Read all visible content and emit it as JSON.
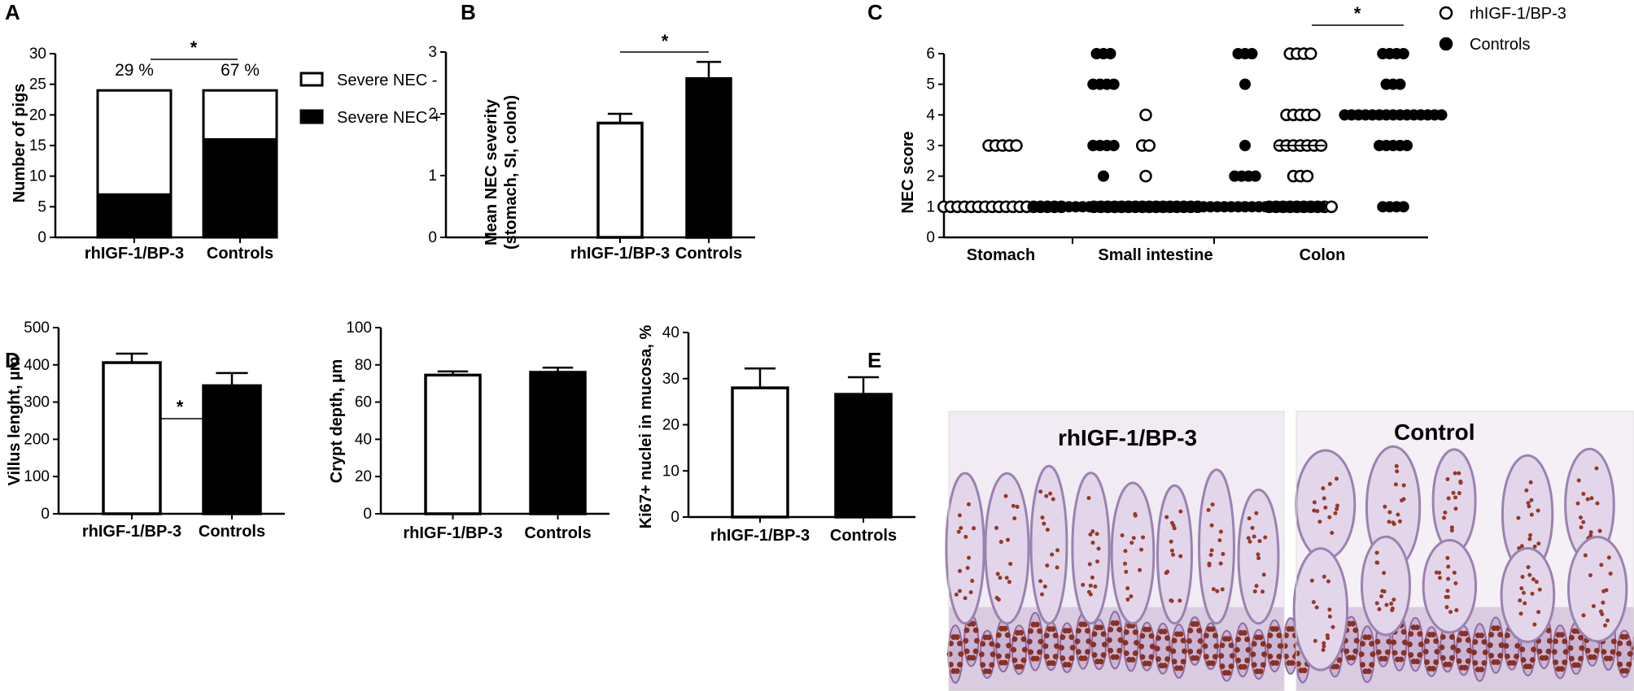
{
  "panels": {
    "A": "A",
    "B": "B",
    "C": "C",
    "D": "D",
    "E": "E"
  },
  "legend_AC": {
    "severe_neg": "Severe NEC -",
    "severe_pos": "Severe NEC +",
    "rhigf": "rhIGF-1/BP-3",
    "controls": "Controls"
  },
  "colors": {
    "black": "#000000",
    "white": "#ffffff"
  },
  "micrograph": {
    "left_label": "rhIGF-1/BP-3",
    "right_label": "Control",
    "left_icon": "micrograph-rhigf-tissue",
    "right_icon": "micrograph-control-tissue"
  },
  "chart_data": [
    {
      "id": "A",
      "type": "bar",
      "stacked": true,
      "categories": [
        "rhIGF-1/BP-3",
        "Controls"
      ],
      "series": [
        {
          "name": "Severe NEC +",
          "values": [
            7,
            16
          ],
          "color": "#000000"
        },
        {
          "name": "Severe NEC -",
          "values": [
            17,
            8
          ],
          "color": "#ffffff"
        }
      ],
      "totals": [
        24,
        24
      ],
      "percent_labels": [
        "29 %",
        "67 %"
      ],
      "ylabel": "Number of pigs",
      "ylim": [
        0,
        30
      ],
      "yticks": [
        0,
        5,
        10,
        15,
        20,
        25,
        30
      ],
      "significance": "*",
      "legend_position": "right"
    },
    {
      "id": "B",
      "type": "bar",
      "categories": [
        "rhIGF-1/BP-3",
        "Controls"
      ],
      "values": [
        1.85,
        2.57
      ],
      "errors": [
        0.15,
        0.27
      ],
      "fills": [
        "#ffffff",
        "#000000"
      ],
      "ylabel": "Mean NEC severity",
      "ylabel2": "(stomach, SI, colon)",
      "ylim": [
        0,
        3
      ],
      "yticks": [
        0,
        1,
        2,
        3
      ],
      "significance": "*"
    },
    {
      "id": "C",
      "type": "scatter",
      "categories": [
        "Stomach",
        "Small intestine",
        "Colon"
      ],
      "ylabel": "NEC score",
      "ylim": [
        0,
        6
      ],
      "yticks": [
        0,
        1,
        2,
        3,
        4,
        5,
        6
      ],
      "series": [
        {
          "name": "rhIGF-1/BP-3",
          "marker": "open-circle",
          "groups": [
            {
              "category": "Stomach",
              "values": [
                1,
                1,
                1,
                1,
                1,
                1,
                1,
                1,
                1,
                1,
                1,
                1,
                1,
                1,
                1,
                1,
                1,
                1,
                3,
                3,
                3,
                3,
                3
              ]
            },
            {
              "category": "Small intestine",
              "values": [
                1,
                1,
                1,
                1,
                1,
                1,
                1,
                1,
                1,
                1,
                1,
                1,
                1,
                1,
                1,
                1,
                2,
                3,
                3,
                4
              ]
            },
            {
              "category": "Colon",
              "values": [
                1,
                1,
                1,
                1,
                1,
                1,
                1,
                1,
                1,
                1,
                2,
                2,
                2,
                3,
                3,
                3,
                3,
                3,
                3,
                3,
                4,
                4,
                4,
                4,
                4,
                6,
                6,
                6,
                6
              ]
            }
          ],
          "medians": [
            null,
            null,
            3
          ]
        },
        {
          "name": "Controls",
          "marker": "filled-circle",
          "groups": [
            {
              "category": "Stomach",
              "values": [
                1,
                1,
                1,
                1,
                1,
                1,
                1,
                1,
                1,
                1,
                1,
                1,
                1,
                1,
                1,
                1,
                1,
                1,
                1,
                1,
                1,
                2,
                3,
                3,
                3,
                3,
                5,
                5,
                5,
                5,
                6,
                6,
                6
              ]
            },
            {
              "category": "Small intestine",
              "values": [
                1,
                1,
                1,
                1,
                1,
                1,
                1,
                1,
                1,
                1,
                1,
                1,
                1,
                1,
                1,
                1,
                1,
                1,
                1,
                1,
                1,
                1,
                1,
                2,
                2,
                2,
                2,
                3,
                5,
                6,
                6,
                6
              ]
            },
            {
              "category": "Colon",
              "values": [
                1,
                1,
                1,
                1,
                3,
                3,
                3,
                3,
                3,
                4,
                4,
                4,
                4,
                4,
                4,
                4,
                4,
                4,
                4,
                4,
                4,
                4,
                4,
                4,
                5,
                5,
                5,
                6,
                6,
                6,
                6
              ]
            }
          ]
        }
      ],
      "significance": "*",
      "legend_position": "top-right"
    },
    {
      "id": "D1",
      "type": "bar",
      "categories": [
        "rhIGF-1/BP-3",
        "Controls"
      ],
      "values": [
        406,
        344
      ],
      "errors": [
        24,
        34
      ],
      "fills": [
        "#ffffff",
        "#000000"
      ],
      "ylabel": "Villus lenght, µm",
      "ylim": [
        0,
        500
      ],
      "yticks": [
        0,
        100,
        200,
        300,
        400,
        500
      ],
      "significance": "*"
    },
    {
      "id": "D2",
      "type": "bar",
      "categories": [
        "rhIGF-1/BP-3",
        "Controls"
      ],
      "values": [
        74.5,
        76
      ],
      "errors": [
        2,
        2.5
      ],
      "fills": [
        "#ffffff",
        "#000000"
      ],
      "ylabel": "Crypt depth, µm",
      "ylim": [
        0,
        100
      ],
      "yticks": [
        0,
        20,
        40,
        60,
        80,
        100
      ]
    },
    {
      "id": "D3",
      "type": "bar",
      "categories": [
        "rhIGF-1/BP-3",
        "Controls"
      ],
      "values": [
        28,
        26.6
      ],
      "errors": [
        4.2,
        3.7
      ],
      "fills": [
        "#ffffff",
        "#000000"
      ],
      "ylabel": "Ki67+ nuclei in mucosa, %",
      "ylim": [
        0,
        40
      ],
      "yticks": [
        0,
        10,
        20,
        30,
        40
      ]
    }
  ]
}
